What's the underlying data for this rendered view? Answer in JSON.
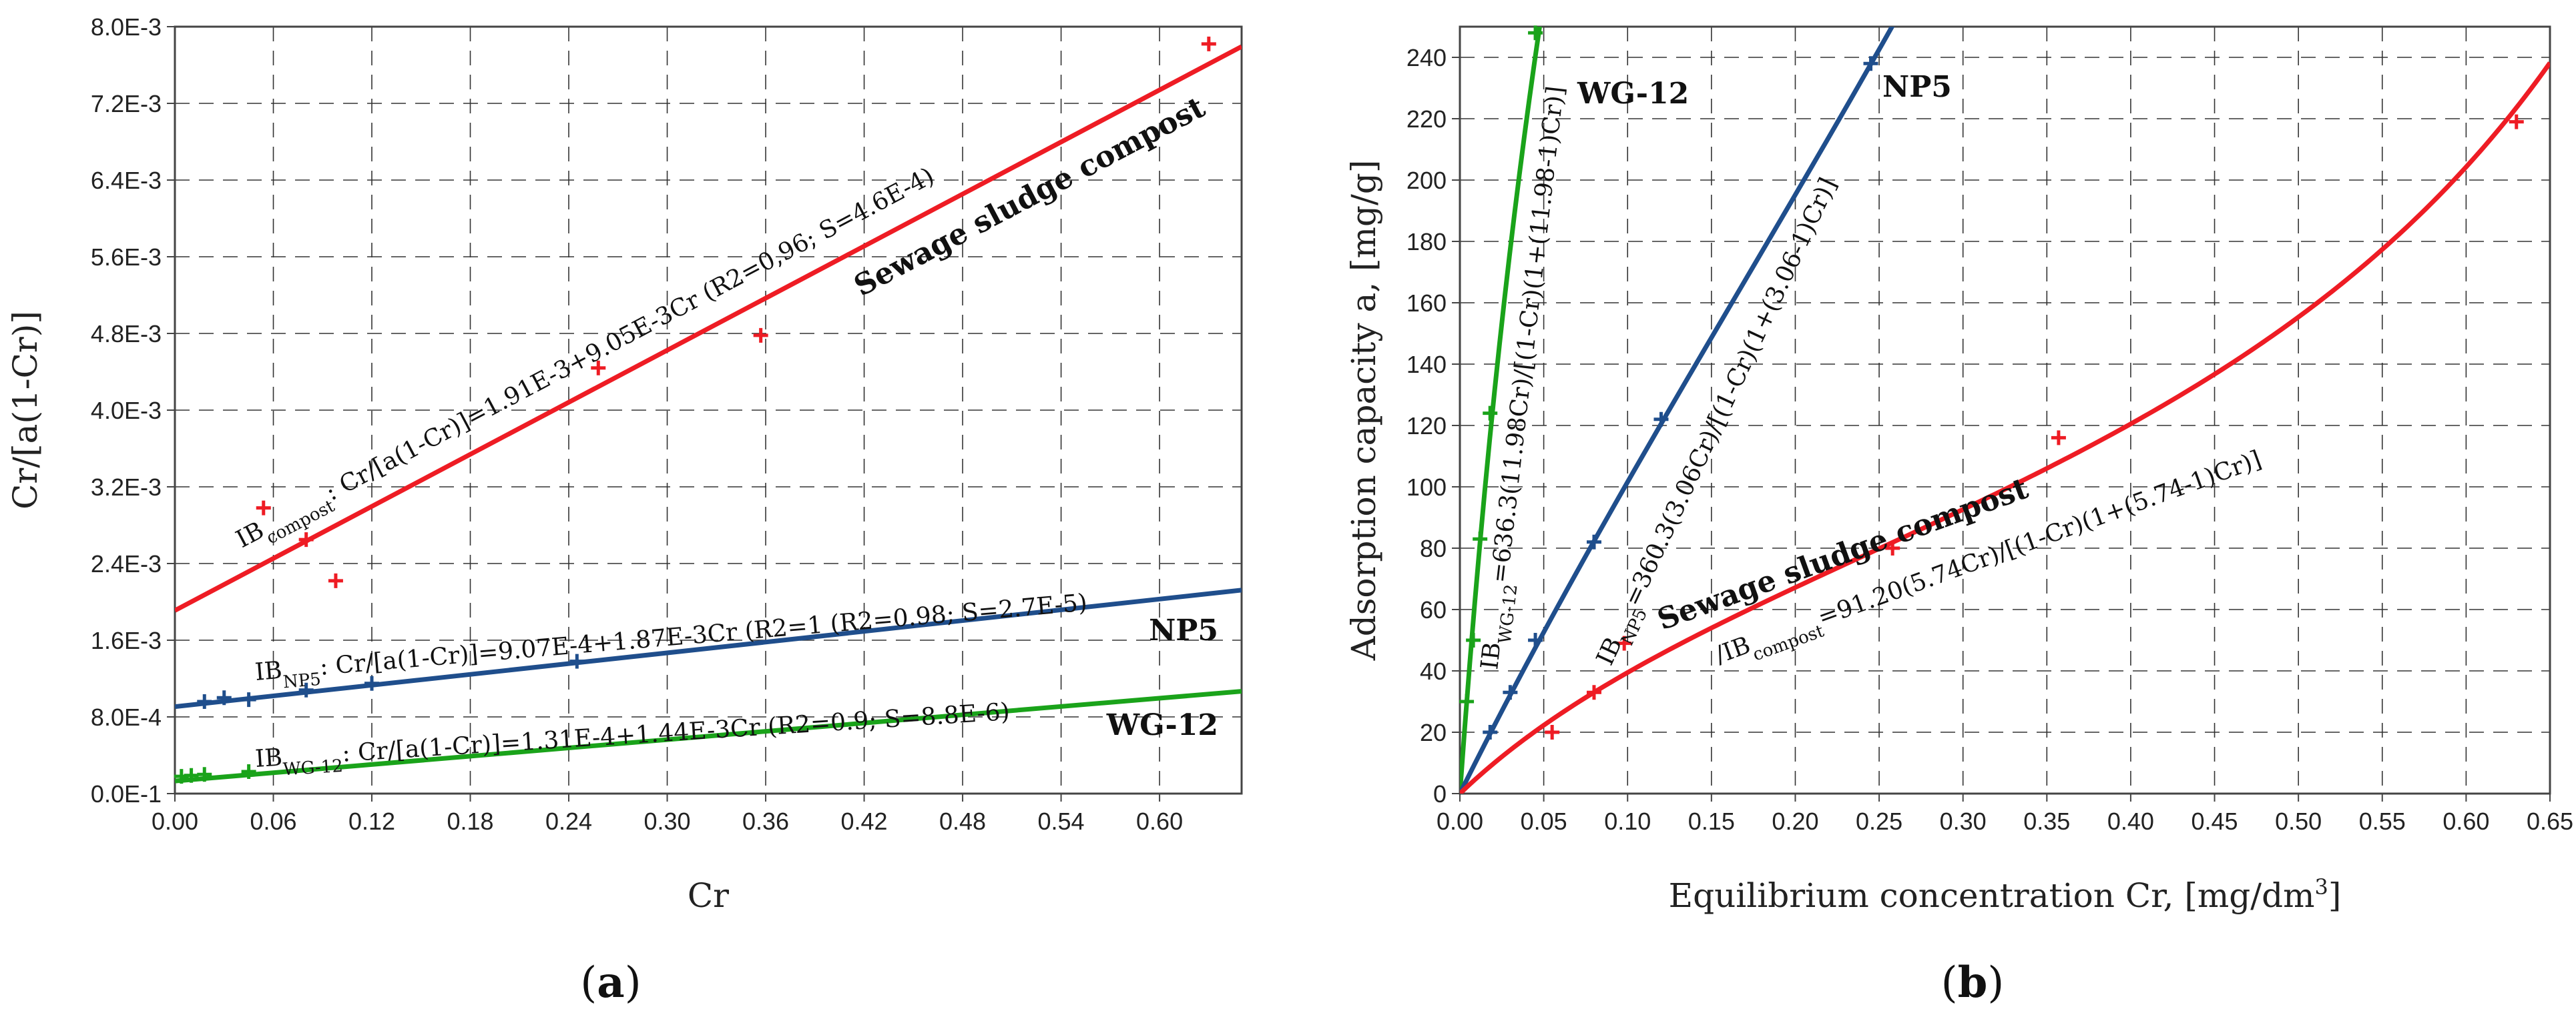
{
  "colors": {
    "compost": "#ee1c24",
    "np5": "#1f4e8c",
    "wg12": "#1aa31a",
    "grid": "#333333"
  },
  "chart_data": [
    {
      "type": "scatter",
      "title": "",
      "xlabel": "Cr",
      "ylabel": "Cr/[a(1-Cr)]",
      "xlim": [
        0,
        0.65
      ],
      "ylim": [
        0,
        0.008
      ],
      "x_ticks": [
        "0.00",
        "0.06",
        "0.12",
        "0.18",
        "0.24",
        "0.30",
        "0.36",
        "0.42",
        "0.48",
        "0.54",
        "0.60"
      ],
      "x_tick_values": [
        0,
        0.06,
        0.12,
        0.18,
        0.24,
        0.3,
        0.36,
        0.42,
        0.48,
        0.54,
        0.6
      ],
      "y_ticks": [
        "0.0E-1",
        "8.0E-4",
        "1.6E-3",
        "2.4E-3",
        "3.2E-3",
        "4.0E-3",
        "4.8E-3",
        "5.6E-3",
        "6.4E-3",
        "7.2E-3",
        "8.0E-3"
      ],
      "y_tick_values": [
        0,
        0.0008,
        0.0016,
        0.0024,
        0.0032,
        0.004,
        0.0048,
        0.0056,
        0.0064,
        0.0072,
        0.008
      ],
      "panel_label": "(a)",
      "series": [
        {
          "name": "Sewage sludge compost",
          "key": "compost",
          "color": "#ee1c24",
          "label": "Sewage sludge compost",
          "fit": {
            "intercept": 0.00191,
            "slope": 0.00905
          },
          "eq_prefix": "IB",
          "eq_sub": "compost",
          "eq_text": ": Cr/[a(1-Cr)]=1.91E-3+9.05E-3Cr (R2=0,96; S=4.6E-4)",
          "points": [
            [
              0.054,
              0.00298
            ],
            [
              0.08,
              0.00265
            ],
            [
              0.098,
              0.00222
            ],
            [
              0.258,
              0.00444
            ],
            [
              0.357,
              0.00478
            ],
            [
              0.63,
              0.00782
            ]
          ]
        },
        {
          "name": "NP5",
          "key": "np5",
          "color": "#1f4e8c",
          "label": "NP5",
          "fit": {
            "intercept": 0.000907,
            "slope": 0.00187
          },
          "eq_prefix": "IB",
          "eq_sub": "NP5",
          "eq_text": ": Cr/[a(1-Cr)]=9.07E-4+1.87E-3Cr (R2=1 (R2=0.98; S=2.7E-5)",
          "points": [
            [
              0.018,
              0.00096
            ],
            [
              0.03,
              0.001
            ],
            [
              0.045,
              0.00098
            ],
            [
              0.08,
              0.00108
            ],
            [
              0.12,
              0.00115
            ],
            [
              0.245,
              0.00138
            ]
          ]
        },
        {
          "name": "WG-12",
          "key": "wg12",
          "color": "#1aa31a",
          "label": "WG-12",
          "fit": {
            "intercept": 0.000131,
            "slope": 0.00144
          },
          "eq_prefix": "IB",
          "eq_sub": "WG-12",
          "eq_text": ": Cr/[a(1-Cr)]=1.31E-4+1.44E-3Cr (R2=0.9; S=8.8E-6)",
          "points": [
            [
              0.004,
              0.00018
            ],
            [
              0.01,
              0.00019
            ],
            [
              0.018,
              0.0002
            ],
            [
              0.045,
              0.00023
            ]
          ]
        }
      ]
    },
    {
      "type": "scatter",
      "title": "",
      "xlabel": "Equilibrium concentration Cr, [mg/dm",
      "xlabel_sup": "3",
      "xlabel_end": "]",
      "ylabel": "Adsorption capacity a, [mg/g]",
      "xlim": [
        0,
        0.65
      ],
      "ylim": [
        0,
        250
      ],
      "x_ticks": [
        "0.00",
        "0.05",
        "0.10",
        "0.15",
        "0.20",
        "0.25",
        "0.30",
        "0.35",
        "0.40",
        "0.45",
        "0.50",
        "0.55",
        "0.60",
        "0.65"
      ],
      "x_tick_values": [
        0,
        0.05,
        0.1,
        0.15,
        0.2,
        0.25,
        0.3,
        0.35,
        0.4,
        0.45,
        0.5,
        0.55,
        0.6,
        0.65
      ],
      "y_ticks": [
        "0",
        "20",
        "40",
        "60",
        "80",
        "100",
        "120",
        "140",
        "160",
        "180",
        "200",
        "220",
        "240"
      ],
      "y_tick_values": [
        0,
        20,
        40,
        60,
        80,
        100,
        120,
        140,
        160,
        180,
        200,
        220,
        240
      ],
      "panel_label": "(b)",
      "series": [
        {
          "name": "WG-12",
          "key": "wg12",
          "color": "#1aa31a",
          "label": "WG-12",
          "model": {
            "am": 636.3,
            "k": 11.98
          },
          "eq_prefix": "IB",
          "eq_sub": "WG-12",
          "eq_text": "=636.3(11.98Cr)/[(1-Cr)(1+(11.98-1)Cr)]",
          "points": [
            [
              0.004,
              30
            ],
            [
              0.008,
              50
            ],
            [
              0.012,
              83
            ],
            [
              0.018,
              124
            ],
            [
              0.045,
              248
            ]
          ]
        },
        {
          "name": "NP5",
          "key": "np5",
          "color": "#1f4e8c",
          "label": "NP5",
          "model": {
            "am": 360.3,
            "k": 3.06
          },
          "eq_prefix": "IB",
          "eq_sub": "NP5",
          "eq_text": "=360.3(3.06Cr)/[(1-Cr)(1+(3.06-1)Cr)]",
          "points": [
            [
              0.018,
              20
            ],
            [
              0.03,
              33
            ],
            [
              0.045,
              50
            ],
            [
              0.08,
              82
            ],
            [
              0.12,
              122
            ],
            [
              0.245,
              238
            ]
          ]
        },
        {
          "name": "Sewage sludge compost",
          "key": "compost",
          "color": "#ee1c24",
          "label": "Sewage sludge compost",
          "model": {
            "am": 91.2,
            "k": 5.74
          },
          "eq_prefix": "/IB",
          "eq_sub": "compost",
          "eq_text": "=91.20(5.74Cr)/[(1-Cr)(1+(5.74-1)Cr)]",
          "points": [
            [
              0.055,
              20
            ],
            [
              0.08,
              33
            ],
            [
              0.098,
              49
            ],
            [
              0.258,
              80
            ],
            [
              0.357,
              116
            ],
            [
              0.63,
              219
            ]
          ]
        }
      ]
    }
  ]
}
